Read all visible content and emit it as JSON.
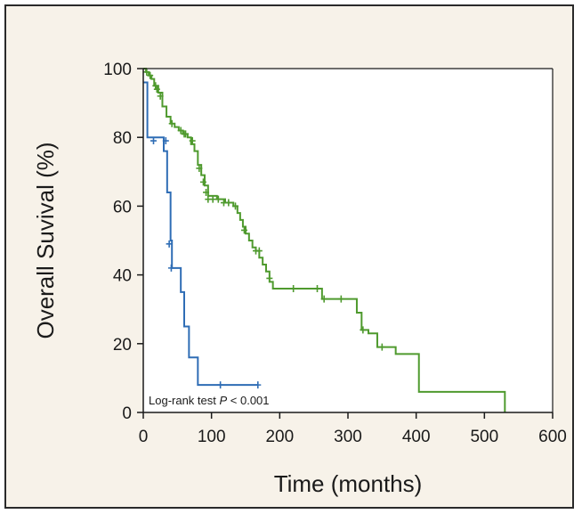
{
  "chart_data": {
    "type": "line",
    "step": true,
    "xlabel": "Time (months)",
    "ylabel": "Overall Suvival (%)",
    "xlim": [
      0,
      600
    ],
    "ylim": [
      0,
      100
    ],
    "x_ticks": [
      0,
      100,
      200,
      300,
      400,
      500,
      600
    ],
    "y_ticks": [
      0,
      20,
      40,
      60,
      80,
      100
    ],
    "grid": false,
    "annotation": {
      "prefix": "Log-rank test ",
      "stat": "P",
      "suffix": " < 0.001"
    },
    "series": [
      {
        "color": "#4f9a2e",
        "points": [
          [
            0,
            100
          ],
          [
            4,
            99
          ],
          [
            8,
            98
          ],
          [
            12,
            97
          ],
          [
            16,
            95
          ],
          [
            22,
            93
          ],
          [
            28,
            89
          ],
          [
            34,
            86
          ],
          [
            40,
            84
          ],
          [
            46,
            83
          ],
          [
            52,
            82
          ],
          [
            58,
            81
          ],
          [
            65,
            80
          ],
          [
            70,
            78
          ],
          [
            75,
            76
          ],
          [
            80,
            72
          ],
          [
            85,
            69
          ],
          [
            90,
            66
          ],
          [
            95,
            63
          ],
          [
            108,
            62
          ],
          [
            120,
            61
          ],
          [
            132,
            60
          ],
          [
            138,
            58
          ],
          [
            142,
            56
          ],
          [
            146,
            54
          ],
          [
            150,
            52
          ],
          [
            155,
            50
          ],
          [
            160,
            48
          ],
          [
            165,
            47
          ],
          [
            170,
            45
          ],
          [
            175,
            43
          ],
          [
            180,
            41
          ],
          [
            185,
            38
          ],
          [
            190,
            36
          ],
          [
            262,
            33
          ],
          [
            313,
            29
          ],
          [
            320,
            24
          ],
          [
            330,
            23
          ],
          [
            343,
            19
          ],
          [
            370,
            17
          ],
          [
            404,
            6
          ],
          [
            530,
            0
          ]
        ],
        "censored": [
          [
            5,
            99
          ],
          [
            10,
            98
          ],
          [
            18,
            95
          ],
          [
            20,
            94
          ],
          [
            25,
            92
          ],
          [
            42,
            84
          ],
          [
            55,
            82
          ],
          [
            60,
            81
          ],
          [
            62,
            81
          ],
          [
            72,
            79
          ],
          [
            82,
            71
          ],
          [
            88,
            67
          ],
          [
            92,
            64
          ],
          [
            95,
            62
          ],
          [
            102,
            62
          ],
          [
            110,
            62
          ],
          [
            118,
            61
          ],
          [
            125,
            61
          ],
          [
            135,
            60
          ],
          [
            148,
            53
          ],
          [
            165,
            47
          ],
          [
            170,
            47
          ],
          [
            185,
            39
          ],
          [
            220,
            36
          ],
          [
            255,
            36
          ],
          [
            265,
            33
          ],
          [
            290,
            33
          ],
          [
            322,
            24
          ],
          [
            350,
            19
          ]
        ]
      },
      {
        "color": "#2f6db5",
        "points": [
          [
            0,
            96
          ],
          [
            6,
            80
          ],
          [
            30,
            76
          ],
          [
            35,
            64
          ],
          [
            40,
            50
          ],
          [
            42,
            42
          ],
          [
            55,
            35
          ],
          [
            60,
            25
          ],
          [
            67,
            16
          ],
          [
            80,
            8
          ],
          [
            168,
            8
          ]
        ],
        "censored": [
          [
            15,
            79
          ],
          [
            33,
            79
          ],
          [
            38,
            49
          ],
          [
            41,
            42
          ],
          [
            113,
            8
          ],
          [
            168,
            8
          ]
        ]
      }
    ]
  }
}
